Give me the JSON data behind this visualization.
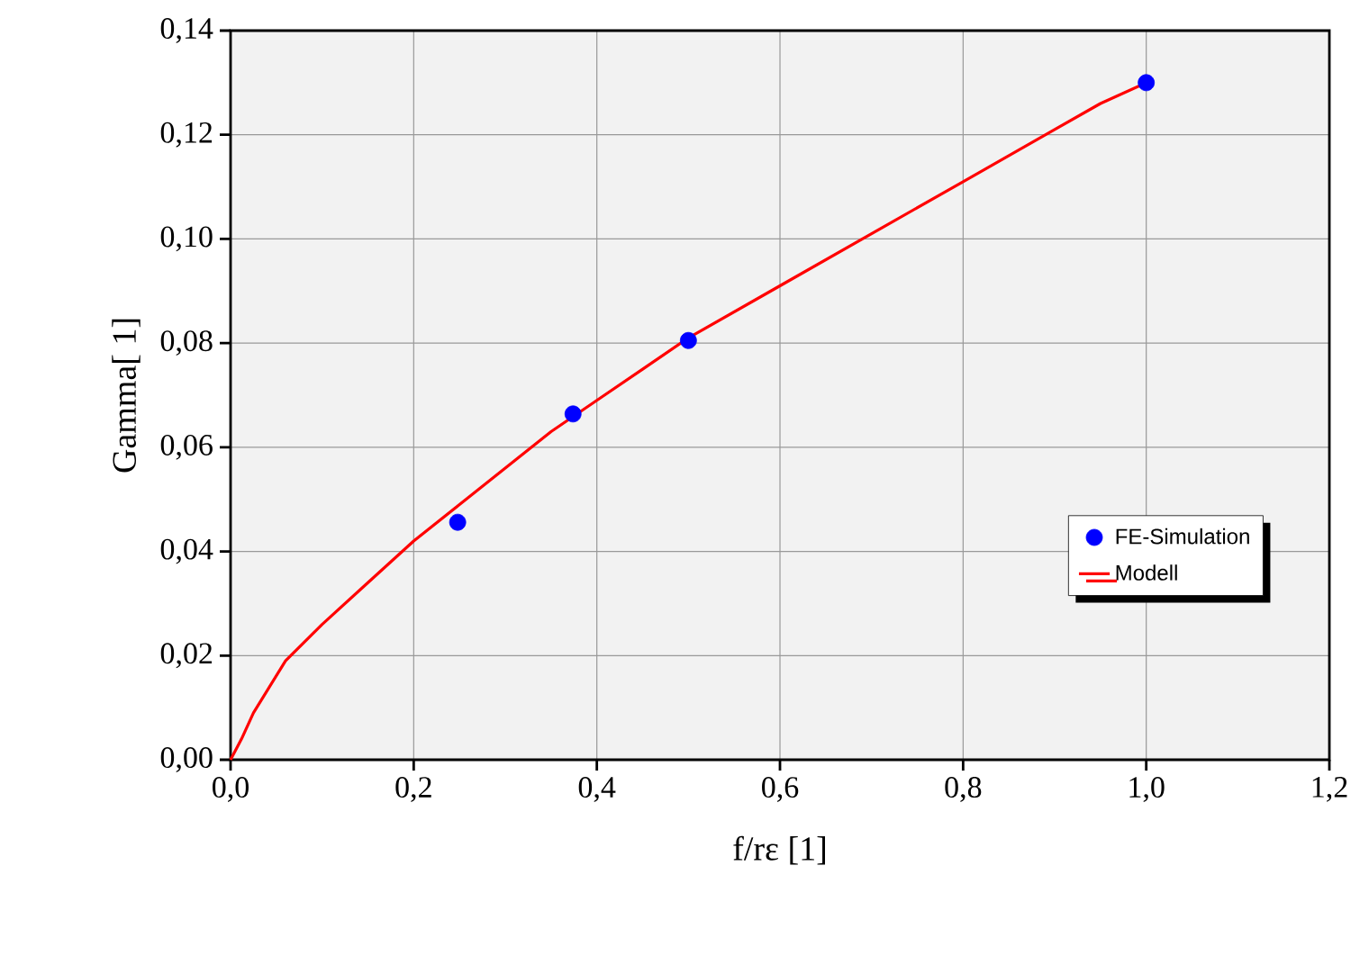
{
  "chart_data": {
    "type": "scatter",
    "xlabel": "f/rε [1]",
    "ylabel": "Gamma[ 1]",
    "xlim": [
      0,
      1.2
    ],
    "ylim": [
      0,
      0.14
    ],
    "xticks": [
      {
        "value": 0,
        "label": "0,0"
      },
      {
        "value": 0.2,
        "label": "0,2"
      },
      {
        "value": 0.4,
        "label": "0,4"
      },
      {
        "value": 0.6,
        "label": "0,6"
      },
      {
        "value": 0.8,
        "label": "0,8"
      },
      {
        "value": 1.0,
        "label": "1,0"
      },
      {
        "value": 1.2,
        "label": "1,2"
      }
    ],
    "yticks": [
      {
        "value": 0,
        "label": "0,00"
      },
      {
        "value": 0.02,
        "label": "0,02"
      },
      {
        "value": 0.04,
        "label": "0,04"
      },
      {
        "value": 0.06,
        "label": "0,06"
      },
      {
        "value": 0.08,
        "label": "0,08"
      },
      {
        "value": 0.1,
        "label": "0,10"
      },
      {
        "value": 0.12,
        "label": "0,12"
      },
      {
        "value": 0.14,
        "label": "0,14"
      }
    ],
    "grid": true,
    "legend": "right",
    "series": [
      {
        "name": "FE-Simulation",
        "marker": "circle",
        "color": "#0000ff",
        "x": [
          0.248,
          0.374,
          0.5,
          1.0
        ],
        "values": [
          0.0456,
          0.0664,
          0.0805,
          0.13
        ]
      },
      {
        "name": "Modell",
        "type": "line",
        "marker": "none",
        "color": "#ff0000",
        "x": [
          0,
          0.012,
          0.025,
          0.06,
          0.1,
          0.15,
          0.2,
          0.25,
          0.3,
          0.35,
          0.4,
          0.45,
          0.5,
          0.6,
          0.7,
          0.8,
          0.85,
          0.9,
          0.95,
          1.0
        ],
        "values": [
          0,
          0.004,
          0.009,
          0.019,
          0.026,
          0.034,
          0.042,
          0.049,
          0.056,
          0.063,
          0.069,
          0.075,
          0.081,
          0.091,
          0.101,
          0.111,
          0.116,
          0.121,
          0.126,
          0.13
        ]
      }
    ]
  }
}
